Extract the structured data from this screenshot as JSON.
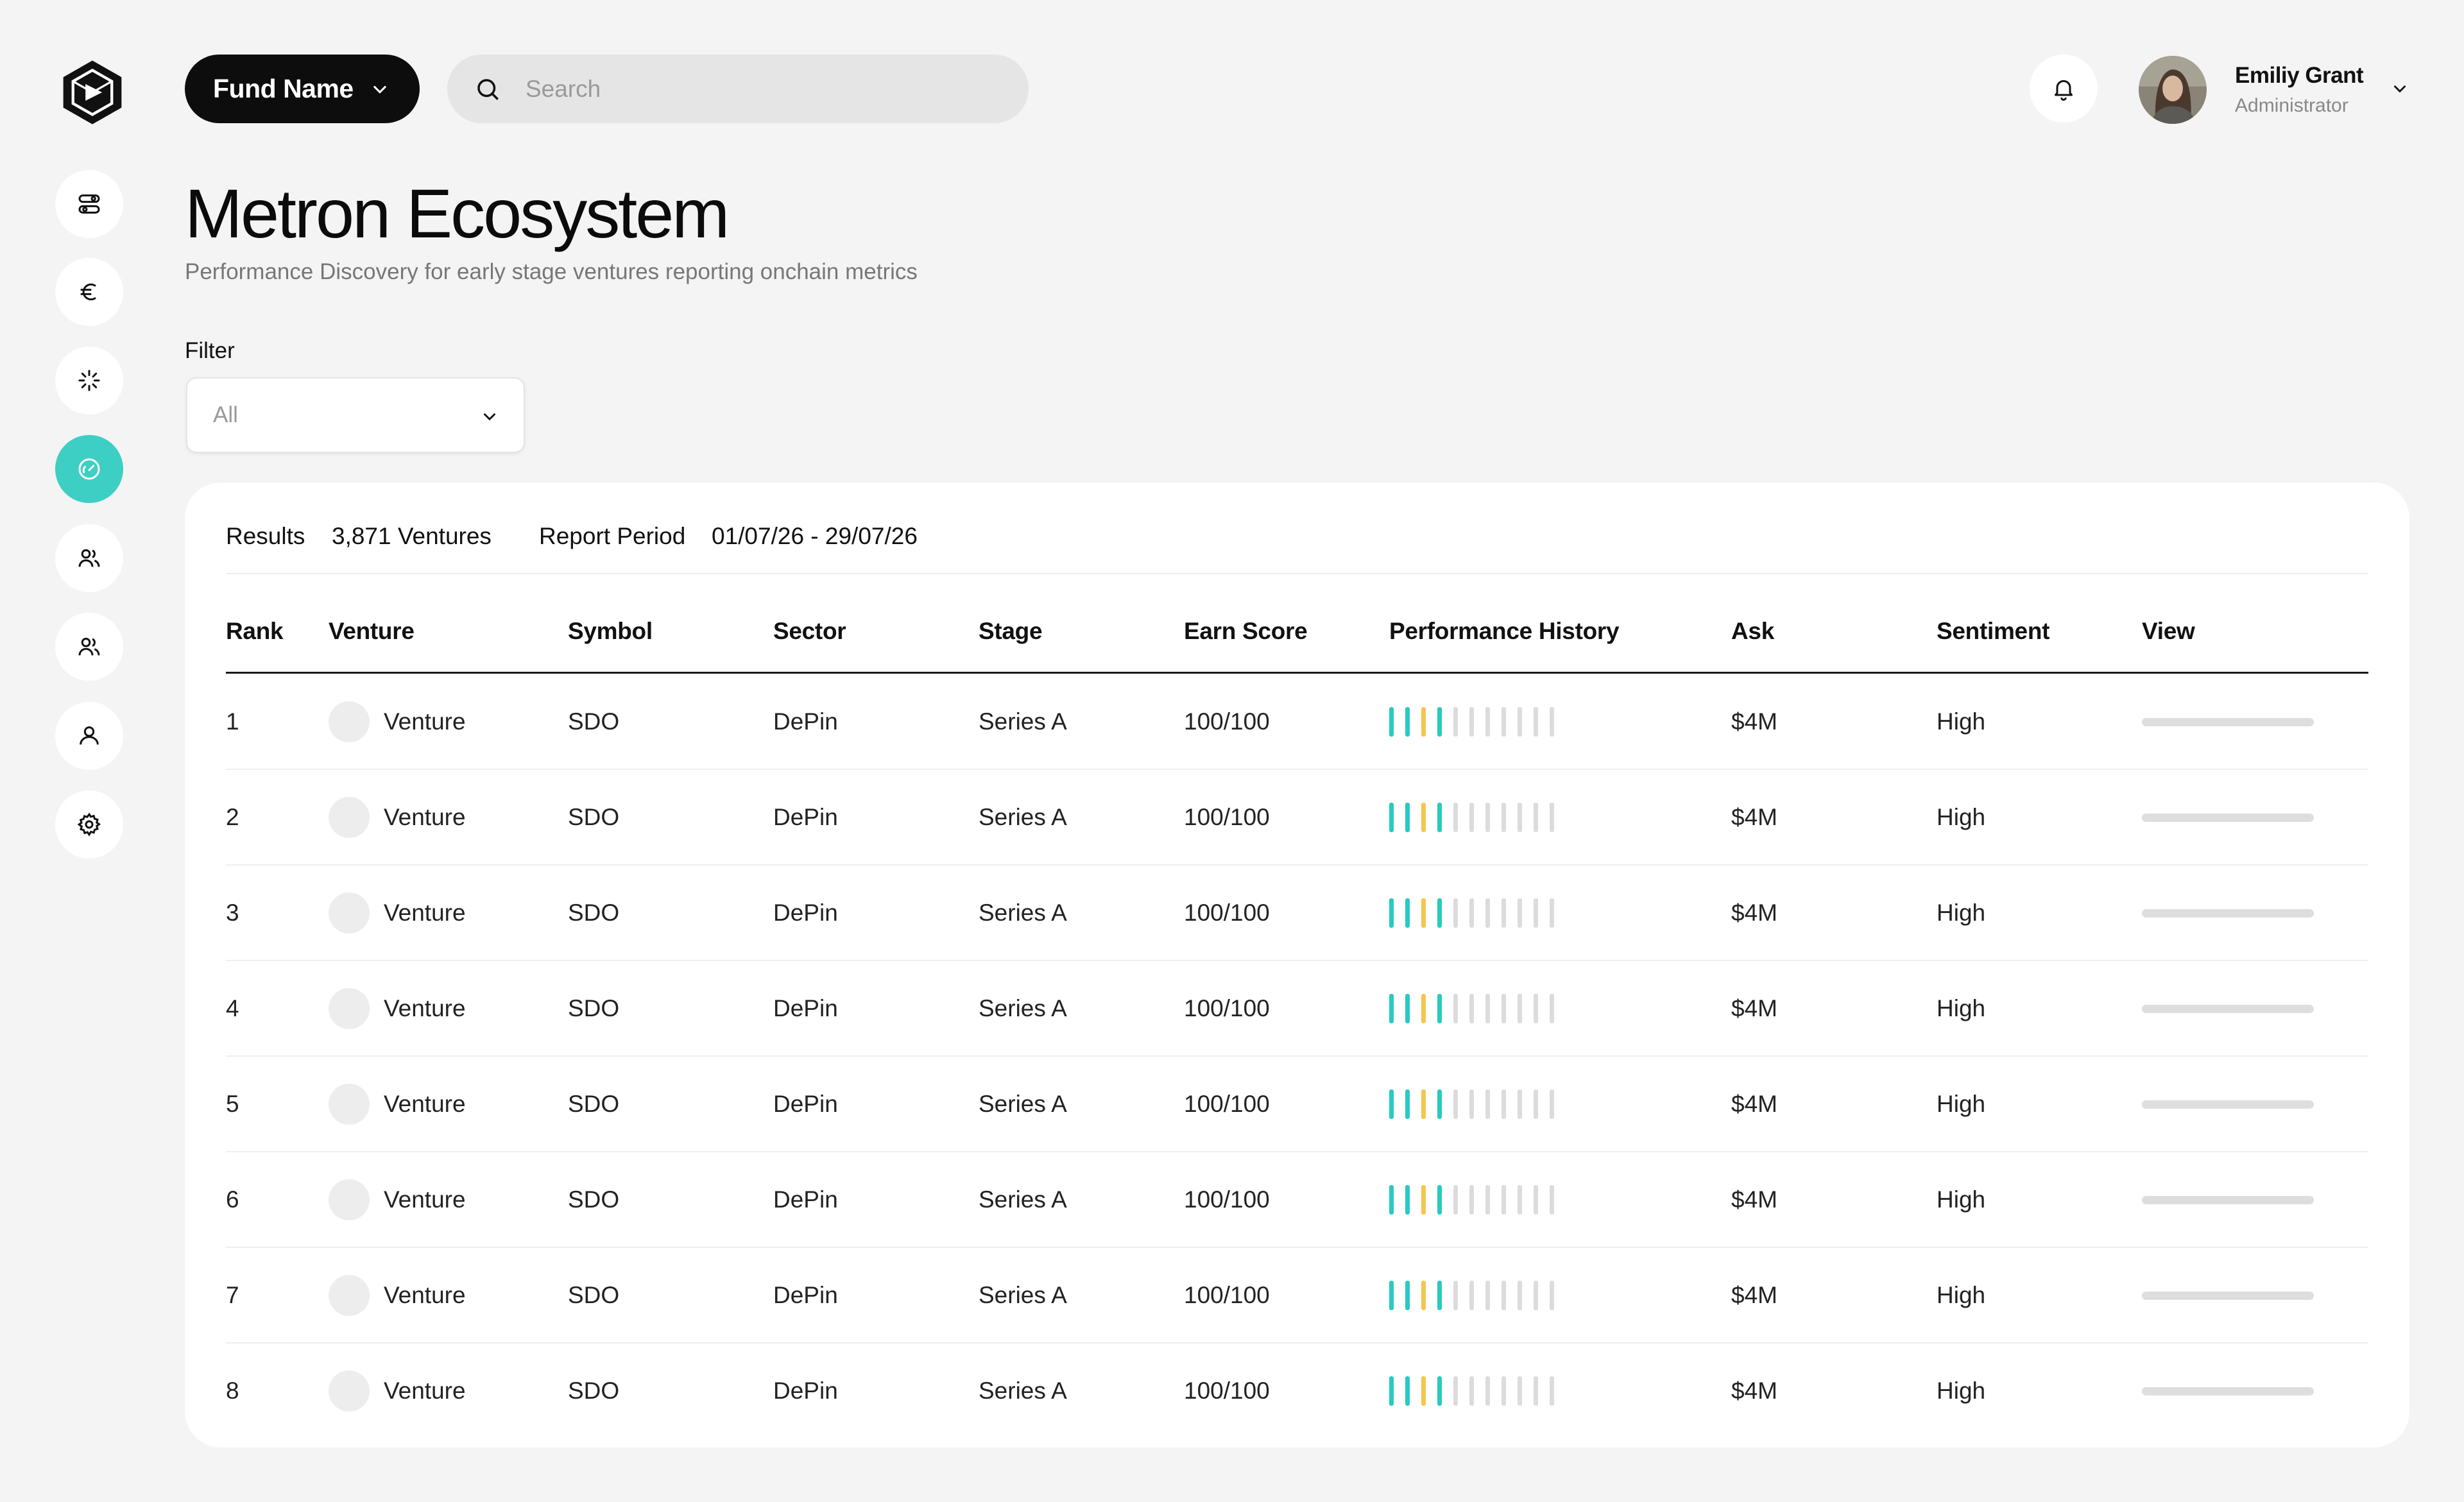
{
  "header": {
    "fund_label": "Fund Name",
    "search_placeholder": "Search",
    "user_name": "Emiliy Grant",
    "user_role": "Administrator"
  },
  "sidebar": {
    "items": [
      {
        "name": "toggles",
        "active": false
      },
      {
        "name": "euro",
        "active": false
      },
      {
        "name": "sparkle",
        "active": false
      },
      {
        "name": "gauge",
        "active": true
      },
      {
        "name": "users",
        "active": false
      },
      {
        "name": "users-2",
        "active": false
      },
      {
        "name": "user",
        "active": false
      },
      {
        "name": "settings",
        "active": false
      }
    ]
  },
  "page": {
    "title": "Metron Ecosystem",
    "subtitle": "Performance Discovery for early stage ventures reporting onchain metrics",
    "filter_label": "Filter",
    "filter_value": "All"
  },
  "summary": {
    "results_label": "Results",
    "results_value": "3,871 Ventures",
    "period_label": "Report Period",
    "period_value": "01/07/26 - 29/07/26"
  },
  "colors": {
    "accent": "#3dcfc4",
    "history_teal": "#27cbc0",
    "history_amber": "#f5c64d",
    "history_empty": "#dcdcdc"
  },
  "table": {
    "columns": [
      "Rank",
      "Venture",
      "Symbol",
      "Sector",
      "Stage",
      "Earn Score",
      "Performance History",
      "Ask",
      "Sentiment",
      "View"
    ],
    "history_pattern": [
      "teal",
      "teal",
      "amber",
      "teal",
      "empty",
      "empty",
      "empty",
      "empty",
      "empty",
      "empty",
      "empty"
    ],
    "rows": [
      {
        "rank": "1",
        "venture": "Venture",
        "symbol": "SDO",
        "sector": "DePin",
        "stage": "Series A",
        "score": "100/100",
        "ask": "$4M",
        "sentiment": "High"
      },
      {
        "rank": "2",
        "venture": "Venture",
        "symbol": "SDO",
        "sector": "DePin",
        "stage": "Series A",
        "score": "100/100",
        "ask": "$4M",
        "sentiment": "High"
      },
      {
        "rank": "3",
        "venture": "Venture",
        "symbol": "SDO",
        "sector": "DePin",
        "stage": "Series A",
        "score": "100/100",
        "ask": "$4M",
        "sentiment": "High"
      },
      {
        "rank": "4",
        "venture": "Venture",
        "symbol": "SDO",
        "sector": "DePin",
        "stage": "Series A",
        "score": "100/100",
        "ask": "$4M",
        "sentiment": "High"
      },
      {
        "rank": "5",
        "venture": "Venture",
        "symbol": "SDO",
        "sector": "DePin",
        "stage": "Series A",
        "score": "100/100",
        "ask": "$4M",
        "sentiment": "High"
      },
      {
        "rank": "6",
        "venture": "Venture",
        "symbol": "SDO",
        "sector": "DePin",
        "stage": "Series A",
        "score": "100/100",
        "ask": "$4M",
        "sentiment": "High"
      },
      {
        "rank": "7",
        "venture": "Venture",
        "symbol": "SDO",
        "sector": "DePin",
        "stage": "Series A",
        "score": "100/100",
        "ask": "$4M",
        "sentiment": "High"
      },
      {
        "rank": "8",
        "venture": "Venture",
        "symbol": "SDO",
        "sector": "DePin",
        "stage": "Series A",
        "score": "100/100",
        "ask": "$4M",
        "sentiment": "High"
      }
    ]
  }
}
